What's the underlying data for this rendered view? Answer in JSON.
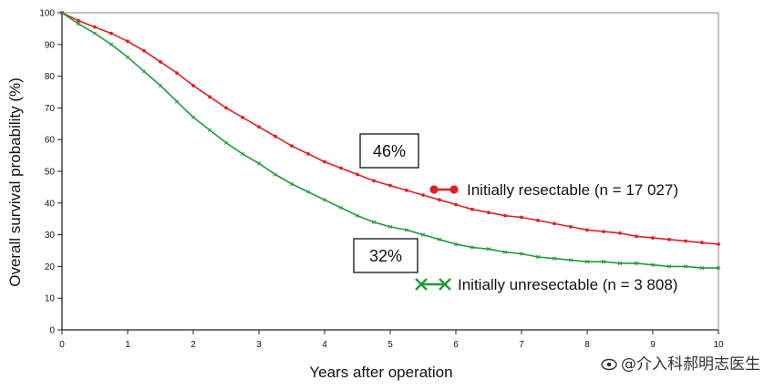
{
  "chart_data": {
    "type": "line",
    "xlabel": "Years after operation",
    "ylabel": "Overall survival probability (%)",
    "xlim": [
      0,
      10
    ],
    "ylim": [
      0,
      100
    ],
    "x_ticks": [
      0,
      1,
      2,
      3,
      4,
      5,
      6,
      7,
      8,
      9,
      10
    ],
    "y_ticks": [
      0,
      10,
      20,
      30,
      40,
      50,
      60,
      70,
      80,
      90,
      100
    ],
    "grid": false,
    "series": [
      {
        "name": "Initially resectable (n = 17 027)",
        "color": "#e02020",
        "marker": "dot",
        "legend_glyph": "●–●",
        "x": [
          0,
          0.25,
          0.5,
          0.75,
          1,
          1.25,
          1.5,
          1.75,
          2,
          2.25,
          2.5,
          2.75,
          3,
          3.25,
          3.5,
          3.75,
          4,
          4.25,
          4.5,
          4.75,
          5,
          5.25,
          5.5,
          5.75,
          6,
          6.25,
          6.5,
          6.75,
          7,
          7.25,
          7.5,
          7.75,
          8,
          8.25,
          8.5,
          8.75,
          9,
          9.25,
          9.5,
          9.75,
          10
        ],
        "y": [
          100,
          97.5,
          95.5,
          93.5,
          91,
          88,
          84.5,
          81,
          77,
          73.5,
          70,
          67,
          64,
          61,
          58,
          55.5,
          53,
          51,
          49,
          47,
          45.5,
          44,
          42.5,
          41,
          39.5,
          38,
          37,
          36,
          35.5,
          34.5,
          33.5,
          32.5,
          31.5,
          31,
          30.5,
          29.5,
          29,
          28.5,
          28,
          27.5,
          27
        ]
      },
      {
        "name": "Initially unresectable (n = 3 808)",
        "color": "#1f9a3a",
        "marker": "x",
        "legend_glyph": "✕–✕",
        "x": [
          0,
          0.25,
          0.5,
          0.75,
          1,
          1.25,
          1.5,
          1.75,
          2,
          2.25,
          2.5,
          2.75,
          3,
          3.25,
          3.5,
          3.75,
          4,
          4.25,
          4.5,
          4.75,
          5,
          5.25,
          5.5,
          5.75,
          6,
          6.25,
          6.5,
          6.75,
          7,
          7.25,
          7.5,
          7.75,
          8,
          8.25,
          8.5,
          8.75,
          9,
          9.25,
          9.5,
          9.75,
          10
        ],
        "y": [
          100,
          96.5,
          93.5,
          90,
          86,
          81.5,
          77,
          72,
          67,
          63,
          59,
          55.5,
          52.5,
          49,
          46,
          43.5,
          41,
          38.5,
          36,
          34,
          32.5,
          31.5,
          30,
          28.5,
          27,
          26,
          25.5,
          24.5,
          24,
          23,
          22.5,
          22,
          21.5,
          21.5,
          21,
          21,
          20.5,
          20,
          20,
          19.5,
          19.5
        ]
      }
    ],
    "annotations": [
      {
        "text": "46%",
        "near_series": 0
      },
      {
        "text": "32%",
        "near_series": 1
      }
    ]
  },
  "watermark": {
    "text": "@介入科郝明志医生"
  }
}
